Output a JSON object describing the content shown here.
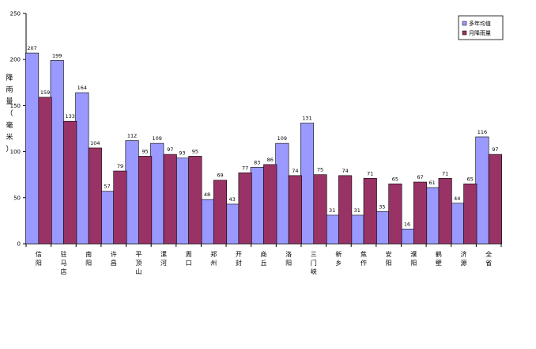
{
  "chart_data": {
    "type": "bar",
    "ylabel": "降雨量（毫米）",
    "ylim": [
      0,
      250
    ],
    "yticks": [
      0,
      50,
      100,
      150,
      200,
      250
    ],
    "grid": false,
    "legend_position": "top-right",
    "categories": [
      "信阳",
      "驻马店",
      "南阳",
      "许昌",
      "平顶山",
      "漯河",
      "周口",
      "郑州",
      "开封",
      "商丘",
      "洛阳",
      "三门峡",
      "新乡",
      "焦作",
      "安阳",
      "濮阳",
      "鹤壁",
      "济源",
      "全省"
    ],
    "series": [
      {
        "name": "多年均值",
        "color": "#9999ff",
        "values": [
          207,
          199,
          164,
          57,
          112,
          109,
          93,
          48,
          43,
          83,
          109,
          131,
          31,
          31,
          35,
          16,
          61,
          44,
          116
        ]
      },
      {
        "name": "月降雨量",
        "color": "#993366",
        "values": [
          159,
          133,
          104,
          79,
          95,
          97,
          95,
          69,
          77,
          86,
          74,
          75,
          74,
          71,
          65,
          67,
          71,
          65,
          97
        ]
      }
    ]
  }
}
